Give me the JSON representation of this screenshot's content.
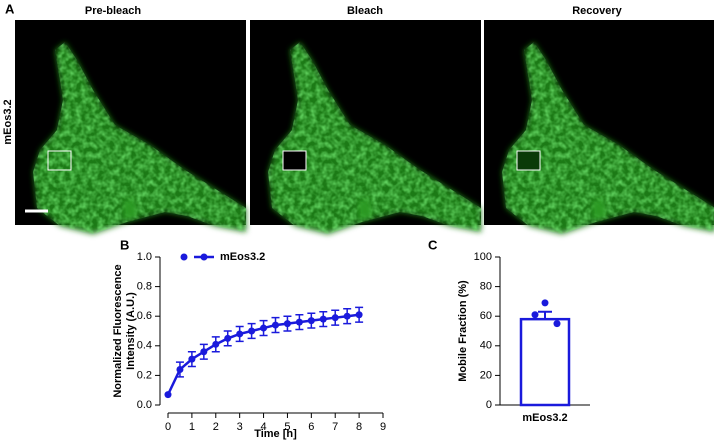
{
  "panel_labels": [
    "A",
    "B",
    "C"
  ],
  "images": {
    "titles": [
      "Pre-bleach",
      "Bleach",
      "Recovery"
    ],
    "row_label": "mEos3.2"
  },
  "chart_data": [
    {
      "type": "line",
      "xlabel": "Time [h]",
      "ylabel": [
        "Normalized Fluorescence",
        "Intensity (A.U.)"
      ],
      "x": [
        0,
        0.5,
        1,
        1.5,
        2,
        2.5,
        3,
        3.5,
        4,
        4.5,
        5,
        5.5,
        6,
        6.5,
        7,
        7.5,
        8
      ],
      "series": [
        {
          "name": "mEos3.2",
          "color": "#1a1adc",
          "values": [
            0.07,
            0.24,
            0.31,
            0.36,
            0.41,
            0.45,
            0.48,
            0.5,
            0.52,
            0.54,
            0.55,
            0.56,
            0.57,
            0.58,
            0.59,
            0.6,
            0.61
          ],
          "errors": [
            0,
            0.05,
            0.05,
            0.05,
            0.05,
            0.05,
            0.05,
            0.05,
            0.05,
            0.05,
            0.05,
            0.05,
            0.05,
            0.05,
            0.05,
            0.05,
            0.05
          ]
        }
      ],
      "xlim": [
        0,
        9
      ],
      "xticks": [
        0,
        1,
        2,
        3,
        4,
        5,
        6,
        7,
        8,
        9
      ],
      "ylim": [
        0,
        1
      ],
      "yticks": [
        {
          "value": 0,
          "label": "0.0"
        },
        0.2,
        0.4,
        0.6,
        0.8,
        {
          "value": 1,
          "label": "1.0"
        }
      ]
    },
    {
      "type": "bar",
      "ylabel": "Mobile Fraction (%)",
      "categories": [
        "mEos3.2"
      ],
      "values": [
        58
      ],
      "errors": [
        5
      ],
      "points": [
        69,
        61,
        55
      ],
      "color": "#1a1adc",
      "ylim": [
        0,
        100
      ],
      "yticks": [
        0,
        20,
        40,
        60,
        80,
        100
      ]
    }
  ]
}
